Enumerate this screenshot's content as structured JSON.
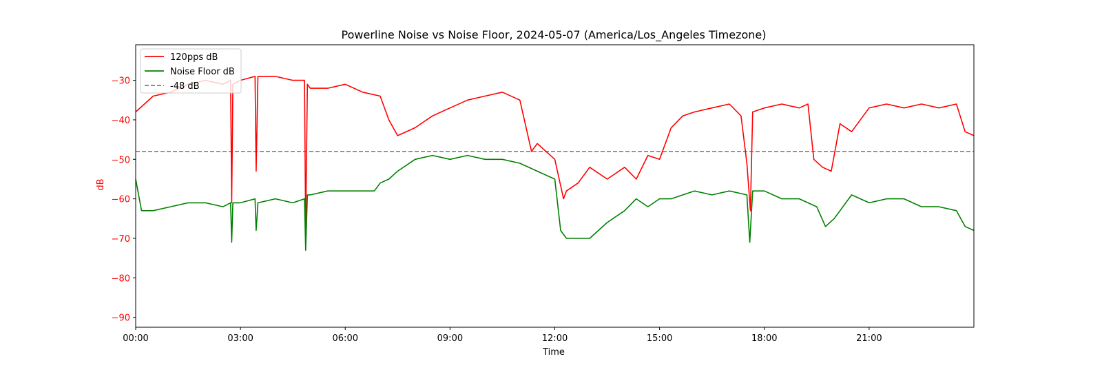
{
  "chart_data": {
    "type": "line",
    "title": "Powerline Noise vs Noise Floor, 2024-05-07 (America/Los_Angeles Timezone)",
    "xlabel": "Time",
    "ylabel": "dB",
    "xlim": [
      "00:00",
      "24:00"
    ],
    "ylim": [
      -92.5,
      -21
    ],
    "x_ticks": [
      "00:00",
      "03:00",
      "06:00",
      "09:00",
      "12:00",
      "15:00",
      "18:00",
      "21:00"
    ],
    "y_ticks": [
      -30,
      -40,
      -50,
      -60,
      -70,
      -80,
      -90
    ],
    "y_tick_labels": [
      "−30",
      "−40",
      "−50",
      "−60",
      "−70",
      "−80",
      "−90"
    ],
    "grid": false,
    "legend_position": "top-left",
    "colors": {
      "signal": "#ff0000",
      "noise_floor": "#008000",
      "threshold": "#7f7f7f",
      "ylabel": "#ff0000"
    },
    "legend": [
      "120pps dB",
      "Noise Floor dB",
      "-48 dB"
    ],
    "threshold": {
      "name": "-48 dB",
      "value": -48,
      "style": "dashed"
    },
    "series": [
      {
        "name": "120pps dB",
        "x": [
          "00:00",
          "00:30",
          "01:00",
          "01:30",
          "02:00",
          "02:30",
          "02:43",
          "02:45",
          "02:47",
          "03:00",
          "03:25",
          "03:27",
          "03:30",
          "04:00",
          "04:30",
          "04:50",
          "04:52",
          "04:55",
          "05:00",
          "05:30",
          "06:00",
          "06:30",
          "07:00",
          "07:15",
          "07:30",
          "08:00",
          "08:30",
          "09:00",
          "09:30",
          "10:00",
          "10:30",
          "11:00",
          "11:20",
          "11:30",
          "12:00",
          "12:15",
          "12:20",
          "12:40",
          "13:00",
          "13:30",
          "14:00",
          "14:20",
          "14:40",
          "15:00",
          "15:20",
          "15:40",
          "16:00",
          "16:30",
          "17:00",
          "17:20",
          "17:30",
          "17:36",
          "17:40",
          "18:00",
          "18:30",
          "19:00",
          "19:15",
          "19:25",
          "19:40",
          "19:55",
          "20:10",
          "20:30",
          "21:00",
          "21:30",
          "22:00",
          "22:30",
          "23:00",
          "23:30",
          "23:45",
          "24:00"
        ],
        "y": [
          -38,
          -34,
          -33,
          -31,
          -30,
          -31,
          -30,
          -61,
          -31,
          -30,
          -29,
          -53,
          -29,
          -29,
          -30,
          -30,
          -68,
          -31,
          -32,
          -32,
          -31,
          -33,
          -34,
          -40,
          -44,
          -42,
          -39,
          -37,
          -35,
          -34,
          -33,
          -35,
          -48,
          -46,
          -50,
          -60,
          -58,
          -56,
          -52,
          -55,
          -52,
          -55,
          -49,
          -50,
          -42,
          -39,
          -38,
          -37,
          -36,
          -39,
          -51,
          -63,
          -38,
          -37,
          -36,
          -37,
          -36,
          -50,
          -52,
          -53,
          -41,
          -43,
          -37,
          -36,
          -37,
          -36,
          -37,
          -36,
          -43,
          -44
        ]
      },
      {
        "name": "Noise Floor dB",
        "x": [
          "00:00",
          "00:10",
          "00:30",
          "01:00",
          "01:30",
          "02:00",
          "02:30",
          "02:43",
          "02:45",
          "02:47",
          "03:00",
          "03:25",
          "03:27",
          "03:30",
          "04:00",
          "04:30",
          "04:50",
          "04:52",
          "04:55",
          "05:00",
          "05:30",
          "06:00",
          "06:30",
          "06:50",
          "07:00",
          "07:15",
          "07:30",
          "08:00",
          "08:30",
          "09:00",
          "09:30",
          "10:00",
          "10:30",
          "11:00",
          "11:30",
          "12:00",
          "12:10",
          "12:20",
          "12:40",
          "13:00",
          "13:30",
          "14:00",
          "14:20",
          "14:40",
          "15:00",
          "15:20",
          "15:40",
          "16:00",
          "16:30",
          "17:00",
          "17:30",
          "17:35",
          "17:40",
          "18:00",
          "18:30",
          "19:00",
          "19:30",
          "19:45",
          "20:00",
          "20:30",
          "21:00",
          "21:30",
          "22:00",
          "22:30",
          "23:00",
          "23:30",
          "23:45",
          "24:00"
        ],
        "y": [
          -55,
          -63,
          -63,
          -62,
          -61,
          -61,
          -62,
          -61,
          -71,
          -61,
          -61,
          -60,
          -68,
          -61,
          -60,
          -61,
          -60,
          -73,
          -59,
          -59,
          -58,
          -58,
          -58,
          -58,
          -56,
          -55,
          -53,
          -50,
          -49,
          -50,
          -49,
          -50,
          -50,
          -51,
          -53,
          -55,
          -68,
          -70,
          -70,
          -70,
          -66,
          -63,
          -60,
          -62,
          -60,
          -60,
          -59,
          -58,
          -59,
          -58,
          -59,
          -71,
          -58,
          -58,
          -60,
          -60,
          -62,
          -67,
          -65,
          -59,
          -61,
          -60,
          -60,
          -62,
          -62,
          -63,
          -67,
          -68
        ]
      }
    ]
  }
}
